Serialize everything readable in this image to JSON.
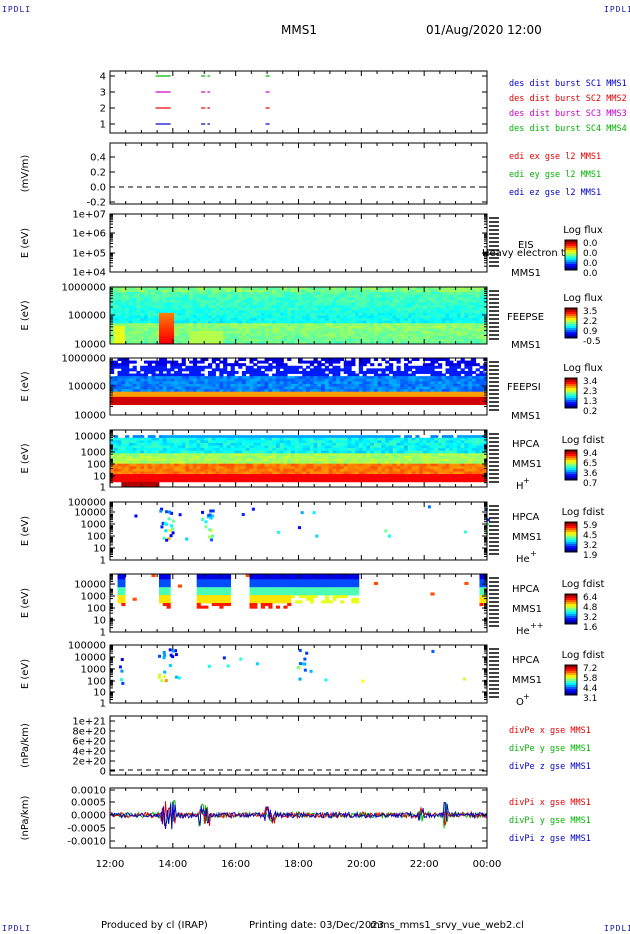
{
  "header": {
    "corner_text": "IPDLI",
    "spacecraft": "MMS1",
    "datetime": "01/Aug/2020 12:00"
  },
  "footer": {
    "produced_by": "Produced by cl (IRAP)",
    "printing_date": "Printing date: 03/Dec/2023",
    "filename": "mms_mms1_srvy_vue_web2.cl"
  },
  "chart_data": [
    {
      "type": "line",
      "panel": "burst-flags",
      "yticks": [
        "4",
        "3",
        "2",
        "1"
      ],
      "x_ticks": [
        "12:00",
        "14:00",
        "16:00",
        "18:00",
        "20:00",
        "22:00",
        "00:00"
      ],
      "legend": [
        {
          "name": "des dist burst SC1 MMS1",
          "color": "#0000c8"
        },
        {
          "name": "des dist burst SC2 MMS2",
          "color": "#e60000"
        },
        {
          "name": "des dist burst SC3 MMS3",
          "color": "#c800c8"
        },
        {
          "name": "des dist burst SC4 MMS4",
          "color": "#00b400"
        }
      ],
      "burst_intervals_hours": [
        [
          13.45,
          13.9
        ],
        [
          14.9,
          15.0
        ],
        [
          15.1,
          15.15
        ],
        [
          16.95,
          17.05
        ]
      ]
    },
    {
      "type": "line",
      "panel": "edi-e-field",
      "ylabel": "(mV/m)",
      "yticks": [
        "0.4",
        "0.2",
        "0.0",
        "-0.2"
      ],
      "legend": [
        {
          "name": "edi ex gse l2 MMS1",
          "color": "#e60000"
        },
        {
          "name": "edi ey gse l2 MMS1",
          "color": "#00b400"
        },
        {
          "name": "edi ez gse l2 MMS1",
          "color": "#0000c8"
        }
      ]
    },
    {
      "type": "heatmap",
      "panel": "eis",
      "ylabel": "E (eV)",
      "yticks": [
        "1e+07",
        "1e+06",
        "1e+05",
        "1e+04"
      ],
      "right_label": [
        "EIS",
        "MMS1"
      ],
      "overlay_text": "Heavy electron to",
      "colorbar": {
        "title": "Log flux",
        "ticks": [
          "0.0",
          "0.0",
          "0.0",
          "0.0"
        ]
      }
    },
    {
      "type": "heatmap",
      "panel": "feepse",
      "ylabel": "E (eV)",
      "yticks": [
        "1000000",
        "100000",
        "10000"
      ],
      "right_label": [
        "FEEPSE",
        "MMS1"
      ],
      "colorbar": {
        "title": "Log flux",
        "ticks": [
          "3.5",
          "2.2",
          "0.9",
          "-0.5"
        ]
      }
    },
    {
      "type": "heatmap",
      "panel": "feepsi",
      "ylabel": "E (eV)",
      "yticks": [
        "1000000",
        "100000",
        "10000"
      ],
      "right_label": [
        "FEEPSI",
        "MMS1"
      ],
      "colorbar": {
        "title": "Log flux",
        "ticks": [
          "3.4",
          "2.3",
          "1.3",
          "0.2"
        ]
      }
    },
    {
      "type": "heatmap",
      "panel": "hpca-h",
      "ylabel": "E (eV)",
      "yticks": [
        "10000",
        "1000",
        "100",
        "10",
        "1"
      ],
      "right_label": [
        "HPCA",
        "MMS1"
      ],
      "species": "H",
      "species_sup": "+",
      "colorbar": {
        "title": "Log fdist",
        "ticks": [
          "9.4",
          "6.5",
          "3.6",
          "0.7"
        ]
      }
    },
    {
      "type": "heatmap",
      "panel": "hpca-he",
      "ylabel": "E (eV)",
      "yticks": [
        "100000",
        "10000",
        "1000",
        "100",
        "10",
        "1"
      ],
      "right_label": [
        "HPCA",
        "MMS1"
      ],
      "species": "He",
      "species_sup": "+",
      "colorbar": {
        "title": "Log fdist",
        "ticks": [
          "5.9",
          "4.5",
          "3.2",
          "1.9"
        ]
      }
    },
    {
      "type": "heatmap",
      "panel": "hpca-hepp",
      "ylabel": "E (eV)",
      "yticks": [
        "10000",
        "1000",
        "100",
        "10",
        "1"
      ],
      "right_label": [
        "HPCA",
        "MMS1"
      ],
      "species": "He",
      "species_sup": "++",
      "colorbar": {
        "title": "Log fdist",
        "ticks": [
          "6.4",
          "4.8",
          "3.2",
          "1.6"
        ]
      }
    },
    {
      "type": "heatmap",
      "panel": "hpca-o",
      "ylabel": "E (eV)",
      "yticks": [
        "100000",
        "10000",
        "1000",
        "100",
        "10",
        "1"
      ],
      "right_label": [
        "HPCA",
        "MMS1"
      ],
      "species": "O",
      "species_sup": "+",
      "colorbar": {
        "title": "Log fdist",
        "ticks": [
          "7.2",
          "5.8",
          "4.4",
          "3.1"
        ]
      }
    },
    {
      "type": "line",
      "panel": "divpe",
      "ylabel": "(nPa/km)",
      "yticks": [
        "1e+21",
        "8e+20",
        "6e+20",
        "4e+20",
        "2e+20",
        "0"
      ],
      "legend": [
        {
          "name": "divPe x gse MMS1",
          "color": "#e60000"
        },
        {
          "name": "divPe y gse MMS1",
          "color": "#00b400"
        },
        {
          "name": "divPe z gse MMS1",
          "color": "#0000c8"
        }
      ]
    },
    {
      "type": "line",
      "panel": "divpi",
      "ylabel": "(nPa/km)",
      "yticks": [
        "0.0010",
        "0.0005",
        "0.0000",
        "-0.0005",
        "-0.0010"
      ],
      "legend": [
        {
          "name": "divPi x gse MMS1",
          "color": "#e60000"
        },
        {
          "name": "divPi y gse MMS1",
          "color": "#00b400"
        },
        {
          "name": "divPi z gse MMS1",
          "color": "#0000c8"
        }
      ]
    }
  ]
}
